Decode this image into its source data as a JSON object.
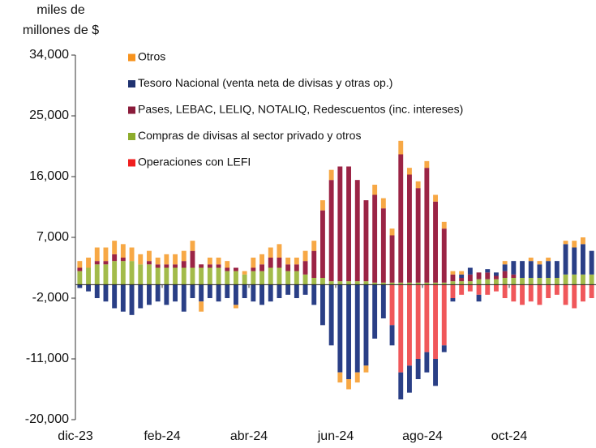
{
  "chart_data": {
    "type": "bar",
    "stacked": true,
    "y_label": [
      "miles de",
      "millones de $"
    ],
    "categories": [
      "dic-23",
      null,
      null,
      null,
      null,
      null,
      null,
      null,
      null,
      null,
      "feb-24",
      null,
      null,
      null,
      null,
      null,
      null,
      null,
      null,
      null,
      "abr-24",
      null,
      null,
      null,
      null,
      null,
      null,
      null,
      null,
      null,
      "jun-24",
      null,
      null,
      null,
      null,
      null,
      null,
      null,
      null,
      null,
      "ago-24",
      null,
      null,
      null,
      null,
      null,
      null,
      null,
      null,
      null,
      "oct-24",
      null,
      null,
      null,
      null,
      null,
      null,
      null,
      null,
      null
    ],
    "series": [
      {
        "name": "Otros",
        "color": "#f7a845",
        "values": [
          1000,
          1500,
          2000,
          2000,
          2000,
          2000,
          2000,
          1500,
          1500,
          1000,
          1500,
          1500,
          1500,
          1500,
          -1500,
          1000,
          1000,
          1000,
          -500,
          500,
          1500,
          1500,
          1500,
          2000,
          1000,
          1000,
          1500,
          1500,
          1500,
          1500,
          -1500,
          -1500,
          -1500,
          -1000,
          1500,
          1500,
          1000,
          2000,
          1000,
          1000,
          1000,
          1000,
          1000,
          500,
          500,
          0,
          0,
          0,
          0,
          500,
          0,
          0,
          500,
          500,
          500,
          0,
          500,
          1000,
          1000,
          0
        ]
      },
      {
        "name": "Tesoro Nacional (venta neta de divisas y otras op.)",
        "color": "#2a3f86",
        "values": [
          -500,
          -1000,
          -2000,
          -2500,
          -3500,
          -4000,
          -4500,
          -3500,
          -3000,
          -2500,
          -3000,
          -2500,
          -4000,
          -2000,
          -2500,
          -2000,
          -2500,
          -2000,
          -3000,
          -2000,
          -2500,
          -3000,
          -2500,
          -2000,
          -1500,
          -2000,
          -1500,
          -3000,
          -6000,
          -9000,
          -13000,
          -14000,
          -13000,
          -12000,
          -8000,
          -5000,
          -3000,
          -4000,
          -4000,
          -3000,
          -3000,
          -4000,
          -1000,
          -500,
          500,
          1000,
          -1000,
          500,
          500,
          1000,
          2000,
          2500,
          2500,
          2000,
          2500,
          2500,
          4500,
          4000,
          4500,
          3500
        ]
      },
      {
        "name": "Pases, LEBAC, LELIQ, NOTALIQ, Redescuentos (inc. intereses)",
        "color": "#9b2445",
        "values": [
          500,
          0,
          500,
          500,
          1000,
          500,
          0,
          0,
          500,
          500,
          500,
          500,
          1000,
          2500,
          500,
          500,
          500,
          500,
          500,
          0,
          500,
          1000,
          1500,
          1500,
          1000,
          1000,
          2000,
          4000,
          10000,
          15000,
          17000,
          17000,
          15000,
          12000,
          13000,
          11000,
          7000,
          19000,
          16000,
          14000,
          17000,
          12000,
          8000,
          1000,
          500,
          1000,
          1000,
          1000,
          500,
          1000,
          500,
          0,
          0,
          0,
          0,
          0,
          0,
          0,
          0,
          0
        ]
      },
      {
        "name": "Compras de divisas al sector privado y otros",
        "color": "#a3bb4a",
        "values": [
          2000,
          2500,
          3000,
          3000,
          3500,
          3500,
          3500,
          3000,
          3000,
          2500,
          2500,
          2500,
          2500,
          2500,
          2500,
          2500,
          2500,
          2000,
          2000,
          1500,
          2000,
          2000,
          2500,
          2500,
          2000,
          2000,
          1500,
          1000,
          1000,
          500,
          500,
          500,
          500,
          500,
          300,
          300,
          300,
          300,
          300,
          300,
          300,
          300,
          300,
          500,
          500,
          500,
          800,
          800,
          800,
          1000,
          1000,
          1000,
          1000,
          1000,
          1000,
          1000,
          1500,
          1500,
          1500,
          1500
        ]
      },
      {
        "name": "Operaciones con LEFI",
        "color": "#f0575a",
        "values": [
          0,
          0,
          0,
          0,
          0,
          0,
          0,
          0,
          0,
          0,
          0,
          0,
          0,
          0,
          0,
          0,
          0,
          0,
          0,
          0,
          0,
          0,
          0,
          0,
          0,
          0,
          0,
          0,
          0,
          0,
          0,
          0,
          0,
          0,
          0,
          0,
          -6000,
          -13000,
          -12000,
          -11000,
          -10000,
          -11000,
          -9000,
          -2000,
          -1500,
          -1000,
          -1500,
          -1500,
          -1000,
          -2000,
          -2500,
          -3000,
          -2500,
          -3000,
          -2000,
          -1500,
          -3000,
          -3500,
          -2500,
          -2000
        ]
      }
    ],
    "legend_colors": [
      "#f7931e",
      "#1f3270",
      "#8a1b3a",
      "#8dac2c",
      "#f01e1e"
    ],
    "ylim": [
      -20000,
      34000
    ],
    "yticks": [
      {
        "value": -20000,
        "label": "-20,000"
      },
      {
        "value": -11000,
        "label": "-11,000"
      },
      {
        "value": -2000,
        "label": "-2,000"
      },
      {
        "value": 7000,
        "label": "7,000"
      },
      {
        "value": 16000,
        "label": "16,000"
      },
      {
        "value": 25000,
        "label": "25,000"
      },
      {
        "value": 34000,
        "label": "34,000"
      }
    ],
    "grid": false,
    "legend": "upper left"
  }
}
